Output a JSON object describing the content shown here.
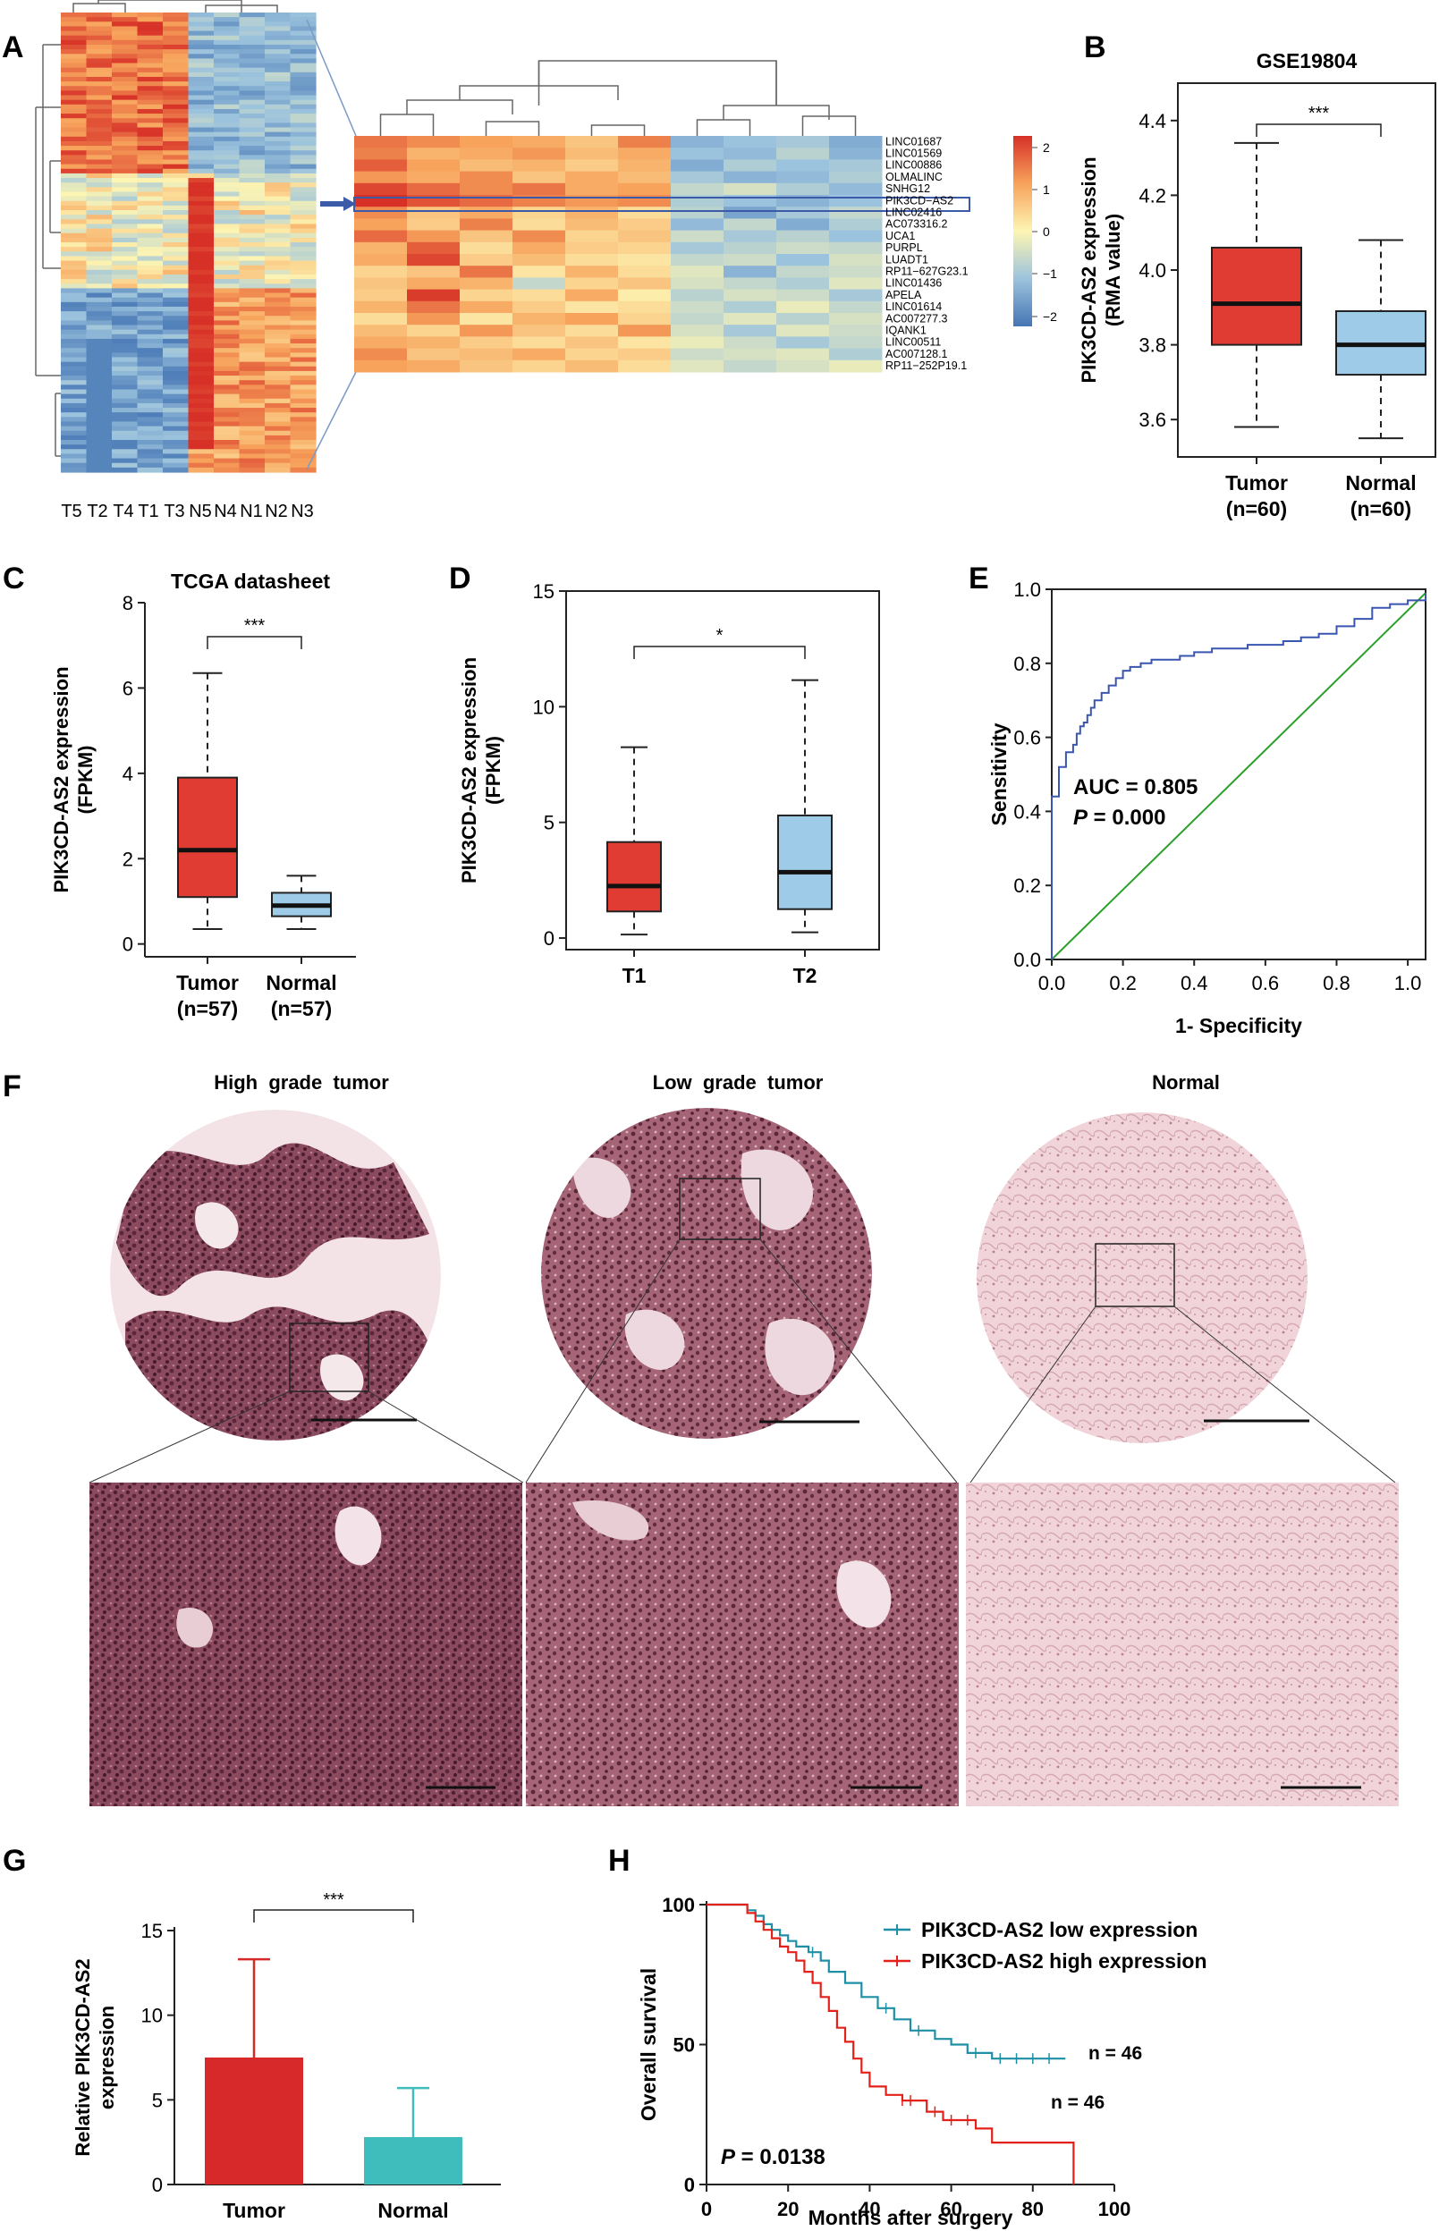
{
  "panels": {
    "A": {
      "letter": "A",
      "sample_labels": [
        "T5",
        "T2",
        "T4",
        "T1",
        "T3",
        "N5",
        "N4",
        "N1",
        "N2",
        "N3"
      ],
      "genes": [
        "LINC01687",
        "LINC01569",
        "LINC00886",
        "OLMALINC",
        "SNHG12",
        "PIK3CD−AS2",
        "LINC02416",
        "AC073316.2",
        "UCA1",
        "PURPL",
        "LUADT1",
        "RP11−627G23.1",
        "LINC01436",
        "APELA",
        "LINC01614",
        "AC007277.3",
        "IQANK1",
        "LINC00511",
        "AC007128.1",
        "RP11−252P19.1"
      ],
      "colorbar": {
        "ticks": [
          "2",
          "1",
          "0",
          "−1",
          "−2"
        ],
        "colors": {
          "high": "#d73027",
          "mid": "#fdf5b3",
          "low": "#4575b4"
        }
      }
    },
    "B": {
      "letter": "B",
      "chart_data": {
        "type": "boxplot",
        "title": "GSE19804",
        "ylabel": "PIK3CD-AS2 expression",
        "ylabel2": "(RMA value)",
        "ylim": [
          3.5,
          4.5
        ],
        "yticks": [
          "3.6",
          "3.8",
          "4.0",
          "4.2",
          "4.4"
        ],
        "significance": "***",
        "groups": [
          {
            "name": "Tumor",
            "n": "(n=60)",
            "min": 3.58,
            "q1": 3.8,
            "median": 3.91,
            "q3": 4.06,
            "max": 4.34,
            "color": "#e03c34"
          },
          {
            "name": "Normal",
            "n": "(n=60)",
            "min": 3.55,
            "q1": 3.72,
            "median": 3.8,
            "q3": 3.89,
            "max": 4.08,
            "color": "#9dcbe8"
          }
        ]
      }
    },
    "C": {
      "letter": "C",
      "chart_data": {
        "type": "boxplot",
        "title": "TCGA datasheet",
        "ylabel": "PIK3CD-AS2 expression",
        "ylabel2": "(FPKM)",
        "ylim": [
          -0.3,
          8
        ],
        "yticks": [
          "0",
          "2",
          "4",
          "6",
          "8"
        ],
        "significance": "***",
        "groups": [
          {
            "name": "Tumor",
            "n": "(n=57)",
            "min": 0.35,
            "q1": 1.1,
            "median": 2.2,
            "q3": 3.9,
            "max": 6.35,
            "color": "#e03c34"
          },
          {
            "name": "Normal",
            "n": "(n=57)",
            "min": 0.35,
            "q1": 0.65,
            "median": 0.9,
            "q3": 1.2,
            "max": 1.6,
            "color": "#9dcbe8"
          }
        ]
      }
    },
    "D": {
      "letter": "D",
      "chart_data": {
        "type": "boxplot",
        "title": "",
        "ylabel": "PIK3CD-AS2 expression",
        "ylabel2": "(FPKM)",
        "ylim": [
          -0.5,
          15
        ],
        "yticks": [
          "0",
          "5",
          "10",
          "15"
        ],
        "significance": "*",
        "groups": [
          {
            "name": "T1",
            "n": "",
            "min": 0.15,
            "q1": 1.15,
            "median": 2.25,
            "q3": 4.15,
            "max": 8.25,
            "color": "#e03c34"
          },
          {
            "name": "T2",
            "n": "",
            "min": 0.25,
            "q1": 1.25,
            "median": 2.85,
            "q3": 5.3,
            "max": 11.15,
            "color": "#9dcbe8"
          }
        ]
      }
    },
    "E": {
      "letter": "E",
      "chart_data": {
        "type": "line",
        "xlabel": "1- Specificity",
        "ylabel": "Sensitivity",
        "xlim": [
          0,
          1.05
        ],
        "ylim": [
          0,
          1
        ],
        "xticks": [
          "0.0",
          "0.2",
          "0.4",
          "0.6",
          "0.8",
          "1.0"
        ],
        "yticks": [
          "0.0",
          "0.2",
          "0.4",
          "0.6",
          "0.8",
          "1.0"
        ],
        "auc_label": "AUC = 0.805",
        "p_label_italic": "P",
        "p_label_rest": " = 0.000",
        "roc_color": "#3a55b0",
        "ref_color": "#2ca02c",
        "roc_x": [
          0,
          0,
          0.02,
          0.02,
          0.04,
          0.04,
          0.06,
          0.07,
          0.08,
          0.09,
          0.1,
          0.11,
          0.12,
          0.14,
          0.16,
          0.18,
          0.2,
          0.22,
          0.25,
          0.28,
          0.32,
          0.36,
          0.4,
          0.45,
          0.5,
          0.55,
          0.6,
          0.65,
          0.7,
          0.75,
          0.8,
          0.85,
          0.9,
          0.95,
          1.0,
          1.05
        ],
        "roc_y": [
          0,
          0.44,
          0.44,
          0.52,
          0.52,
          0.56,
          0.58,
          0.61,
          0.63,
          0.64,
          0.66,
          0.68,
          0.7,
          0.72,
          0.74,
          0.76,
          0.78,
          0.79,
          0.8,
          0.81,
          0.81,
          0.82,
          0.83,
          0.84,
          0.84,
          0.85,
          0.85,
          0.86,
          0.87,
          0.88,
          0.9,
          0.92,
          0.95,
          0.96,
          0.97,
          0.99
        ]
      }
    },
    "F": {
      "letter": "F",
      "titles": [
        "High  grade  tumor",
        "Low  grade  tumor",
        "Normal"
      ]
    },
    "G": {
      "letter": "G",
      "chart_data": {
        "type": "bar",
        "categories": [
          "Tumor",
          "Normal"
        ],
        "values": [
          7.5,
          2.8
        ],
        "errors": [
          5.8,
          2.9
        ],
        "colors": [
          "#d8292a",
          "#3fbcbc"
        ],
        "ylabel": "Relative PIK3CD-AS2",
        "ylabel2": "expression",
        "ylim": [
          0,
          15
        ],
        "yticks": [
          "0",
          "5",
          "10",
          "15"
        ],
        "significance": "***"
      }
    },
    "H": {
      "letter": "H",
      "chart_data": {
        "type": "line",
        "xlabel": "Months after surgery",
        "ylabel": "Overall survival",
        "xlim": [
          0,
          100
        ],
        "ylim": [
          0,
          100
        ],
        "xticks": [
          "0",
          "20",
          "40",
          "60",
          "80",
          "100"
        ],
        "yticks": [
          "0",
          "50",
          "100"
        ],
        "p_label_italic": "P",
        "p_label_rest": " = 0.0138",
        "series": [
          {
            "name": "PIK3CD-AS2 low expression",
            "color": "#1f8fa6",
            "n_label": "n = 46",
            "x": [
              0,
              8,
              10,
              12,
              14,
              16,
              18,
              20,
              22,
              25,
              28,
              30,
              34,
              38,
              42,
              46,
              50,
              56,
              60,
              64,
              70,
              88
            ],
            "y": [
              100,
              100,
              98,
              96,
              93,
              91,
              89,
              87,
              85,
              83,
              80,
              76,
              72,
              67,
              63,
              59,
              55,
              52,
              50,
              47,
              45,
              45
            ]
          },
          {
            "name": "PIK3CD-AS2 high expression",
            "color": "#e32119",
            "n_label": "n = 46",
            "x": [
              0,
              8,
              10,
              12,
              14,
              16,
              18,
              20,
              22,
              24,
              26,
              28,
              30,
              32,
              34,
              36,
              38,
              40,
              44,
              48,
              54,
              58,
              66,
              70,
              78,
              90,
              90
            ],
            "y": [
              100,
              100,
              97,
              94,
              91,
              88,
              85,
              83,
              80,
              76,
              72,
              67,
              62,
              56,
              51,
              45,
              40,
              35,
              32,
              30,
              26,
              23,
              20,
              15,
              15,
              15,
              0
            ]
          }
        ]
      }
    }
  }
}
